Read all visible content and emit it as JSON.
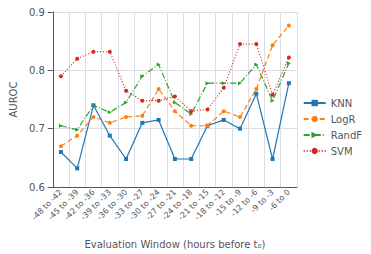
{
  "chart_data": {
    "type": "line",
    "xlabel": "Evaluation Window (hours before t₀)",
    "ylabel": "AUROC",
    "categories": [
      "-48 to -42",
      "-45 to -39",
      "-42 to -36",
      "-39 to -33",
      "-36 to -30",
      "-33 to -27",
      "-30 to -24",
      "-27 to -21",
      "-24 to -18",
      "-21 to -15",
      "-18 to -12",
      "-15 to -9",
      "-12 to -6",
      "-9 to -3",
      "-6 to 0"
    ],
    "series": [
      {
        "name": "KNN",
        "color": "#1f77b4",
        "marker": "square",
        "line_style": "solid",
        "values": [
          0.66,
          0.632,
          0.74,
          0.688,
          0.648,
          0.71,
          0.715,
          0.648,
          0.648,
          0.705,
          0.715,
          0.7,
          0.76,
          0.648,
          0.778
        ]
      },
      {
        "name": "LogR",
        "color": "#ff7f0e",
        "marker": "circle",
        "line_style": "dashed",
        "values": [
          0.67,
          0.688,
          0.72,
          0.71,
          0.72,
          0.722,
          0.768,
          0.73,
          0.705,
          0.705,
          0.73,
          0.72,
          0.768,
          0.843,
          0.877
        ]
      },
      {
        "name": "RandF",
        "color": "#2ca02c",
        "marker": "triangle-right",
        "line_style": "dashdot",
        "values": [
          0.705,
          0.698,
          0.74,
          0.728,
          0.745,
          0.79,
          0.81,
          0.745,
          0.725,
          0.778,
          0.778,
          0.778,
          0.81,
          0.748,
          0.812
        ]
      },
      {
        "name": "SVM",
        "color": "#d62728",
        "marker": "circle",
        "line_style": "dotted",
        "values": [
          0.79,
          0.82,
          0.832,
          0.832,
          0.765,
          0.748,
          0.748,
          0.755,
          0.73,
          0.733,
          0.77,
          0.845,
          0.845,
          0.758,
          0.822
        ]
      }
    ],
    "ylim": [
      0.6,
      0.9
    ],
    "yticks": [
      0.6,
      0.7,
      0.8,
      0.9
    ],
    "grid": true,
    "legend": "right"
  }
}
